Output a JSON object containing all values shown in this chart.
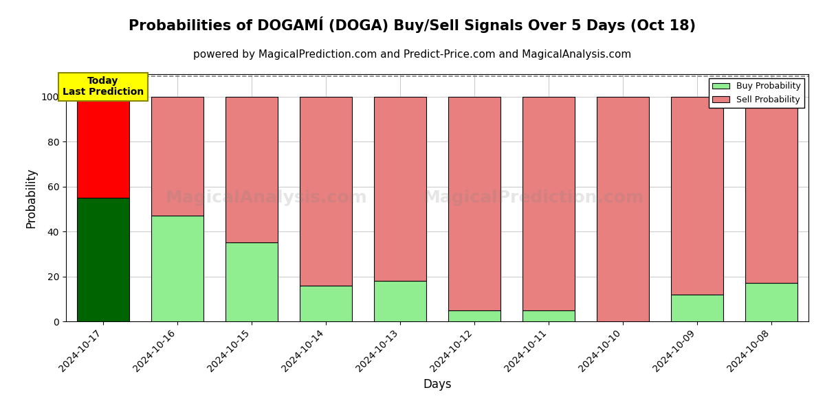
{
  "title": "Probabilities of DOGAMÍ (DOGA) Buy/Sell Signals Over 5 Days (Oct 18)",
  "subtitle": "powered by MagicalPrediction.com and Predict-Price.com and MagicalAnalysis.com",
  "xlabel": "Days",
  "ylabel": "Probability",
  "ylim": [
    0,
    110
  ],
  "dashed_line_y": 109,
  "dates": [
    "2024-10-17",
    "2024-10-16",
    "2024-10-15",
    "2024-10-14",
    "2024-10-13",
    "2024-10-12",
    "2024-10-11",
    "2024-10-10",
    "2024-10-09",
    "2024-10-08"
  ],
  "buy_values": [
    55,
    47,
    35,
    16,
    18,
    5,
    5,
    0,
    12,
    17
  ],
  "sell_values": [
    45,
    53,
    65,
    84,
    82,
    95,
    95,
    100,
    88,
    83
  ],
  "today_bar_buy_color": "#006400",
  "today_bar_sell_color": "#FF0000",
  "buy_color": "#90EE90",
  "sell_color": "#E88080",
  "today_label": "Today\nLast Prediction",
  "legend_buy": "Buy Probability",
  "legend_sell": "Sell Probability",
  "bar_edge_color": "#000000",
  "background_color": "#ffffff",
  "grid_color": "#cccccc",
  "title_fontsize": 15,
  "subtitle_fontsize": 11,
  "axis_label_fontsize": 12,
  "tick_fontsize": 10,
  "bar_width": 0.7
}
